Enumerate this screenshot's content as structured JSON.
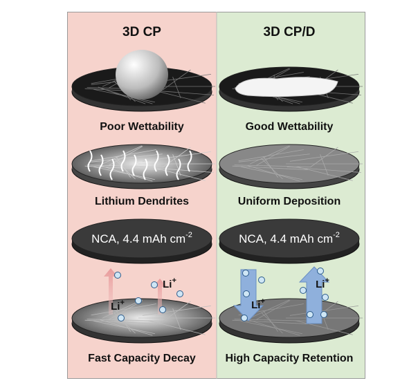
{
  "panels": [
    {
      "title": "3D CP",
      "labels": [
        "Poor Wettability",
        "Lithium Dendrites"
      ],
      "cathode": {
        "text": "NCA, 4.4 mAh cm",
        "superscript": "-2"
      },
      "ions": [
        {
          "text": "Li",
          "charge": "+"
        },
        {
          "text": "Li",
          "charge": "+"
        }
      ],
      "caption": "Fast Capacity Decay"
    },
    {
      "title": "3D CP/D",
      "labels": [
        "Good Wettability",
        "Uniform Deposition"
      ],
      "cathode": {
        "text": "NCA, 4.4 mAh cm",
        "superscript": "-2"
      },
      "ions": [
        {
          "text": "Li",
          "charge": "+"
        },
        {
          "text": "Li",
          "charge": "+"
        }
      ],
      "caption": "High Capacity Retention"
    }
  ]
}
